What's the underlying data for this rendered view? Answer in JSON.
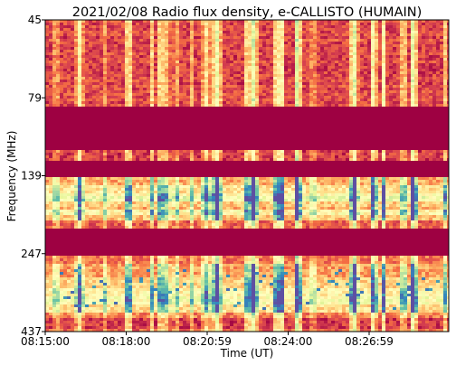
{
  "chart_data": {
    "type": "heatmap",
    "title": "2021/02/08  Radio flux density, e-CALLISTO (HUMAIN)",
    "xlabel": "Time (UT)",
    "ylabel": "Frequency (MHz)",
    "x_ticks": [
      "08:15:00",
      "08:18:00",
      "08:20:59",
      "08:24:00",
      "08:26:59"
    ],
    "x_range": [
      "08:15:00",
      "08:29:30"
    ],
    "y_ticks": [
      "45",
      "79",
      "139",
      "247",
      "437"
    ],
    "y_range_mhz": [
      45,
      437
    ],
    "y_direction": "frequency increases downward",
    "colormap": "Spectral_r",
    "colors": {
      "low": "#9e0142",
      "mid_low": "#f46d43",
      "mid": "#fee08b",
      "mid_high": "#e6f598",
      "high": "#5e4fa2"
    },
    "grid": false,
    "legend": "none"
  }
}
